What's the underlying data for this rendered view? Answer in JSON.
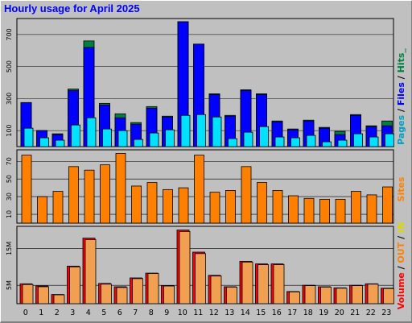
{
  "title": "Hourly usage for April 2025",
  "colors": {
    "pages": "#00e0ff",
    "files": "#0000ff",
    "hits": "#008040",
    "sites": "#ff8000",
    "in": "#d8d800",
    "out": "#ff8000",
    "volume": "#ff0000"
  },
  "legend": {
    "top": [
      {
        "text": "Pages",
        "color": "#00a0c0"
      },
      {
        "text": " / ",
        "color": "#000000"
      },
      {
        "text": "Files",
        "color": "#0000ff"
      },
      {
        "text": " / ",
        "color": "#000000"
      },
      {
        "text": "Hits",
        "color": "#008040"
      },
      {
        "text": "_",
        "color": "#008040"
      }
    ],
    "middle": [
      {
        "text": "Sites",
        "color": "#ff8000"
      }
    ],
    "bottom": [
      {
        "text": "Volume",
        "color": "#ff0000"
      },
      {
        "text": " / ",
        "color": "#000000"
      },
      {
        "text": "OUT",
        "color": "#ff8000"
      },
      {
        "text": " / ",
        "color": "#000000"
      },
      {
        "text": "IN",
        "color": "#d8d800"
      }
    ]
  },
  "chart_data": [
    {
      "type": "bar",
      "panel": "pages-files-hits",
      "categories": [
        "0",
        "1",
        "2",
        "3",
        "4",
        "5",
        "6",
        "7",
        "8",
        "9",
        "10",
        "11",
        "12",
        "13",
        "14",
        "15",
        "16",
        "17",
        "18",
        "19",
        "20",
        "21",
        "22",
        "23"
      ],
      "yticks": [
        100,
        300,
        500,
        700
      ],
      "ylim": [
        0,
        800
      ],
      "series": [
        {
          "name": "Hits",
          "values": [
            275,
            100,
            80,
            360,
            660,
            270,
            205,
            150,
            250,
            190,
            780,
            640,
            330,
            195,
            355,
            330,
            160,
            110,
            165,
            120,
            95,
            200,
            130,
            160
          ]
        },
        {
          "name": "Files",
          "values": [
            275,
            100,
            75,
            350,
            620,
            260,
            180,
            140,
            240,
            185,
            780,
            640,
            325,
            190,
            350,
            325,
            155,
            105,
            160,
            115,
            75,
            195,
            125,
            130
          ]
        },
        {
          "name": "Pages",
          "values": [
            115,
            55,
            40,
            135,
            180,
            110,
            100,
            45,
            85,
            105,
            195,
            200,
            185,
            50,
            90,
            125,
            60,
            55,
            70,
            30,
            40,
            80,
            60,
            80
          ]
        }
      ]
    },
    {
      "type": "bar",
      "panel": "sites",
      "categories": [
        "0",
        "1",
        "2",
        "3",
        "4",
        "5",
        "6",
        "7",
        "8",
        "9",
        "10",
        "11",
        "12",
        "13",
        "14",
        "15",
        "16",
        "17",
        "18",
        "19",
        "20",
        "21",
        "22",
        "23"
      ],
      "yticks": [
        10,
        30,
        50,
        70
      ],
      "ylim": [
        0,
        83
      ],
      "series": [
        {
          "name": "Sites",
          "values": [
            77,
            30,
            36,
            64,
            60,
            66,
            79,
            42,
            46,
            38,
            40,
            77,
            35,
            37,
            64,
            46,
            37,
            31,
            28,
            27,
            27,
            36,
            32,
            41
          ]
        }
      ]
    },
    {
      "type": "bar",
      "panel": "volume",
      "categories": [
        "0",
        "1",
        "2",
        "3",
        "4",
        "5",
        "6",
        "7",
        "8",
        "9",
        "10",
        "11",
        "12",
        "13",
        "14",
        "15",
        "16",
        "17",
        "18",
        "19",
        "20",
        "21",
        "22",
        "23"
      ],
      "yticks": [
        "5M",
        "15M"
      ],
      "ytick_values": [
        5,
        15
      ],
      "ylim": [
        0,
        21
      ],
      "series": [
        {
          "name": "Volume",
          "values": [
            5.4,
            4.8,
            2.5,
            10.2,
            17.8,
            5.5,
            4.6,
            7.0,
            8.3,
            4.9,
            20.0,
            14.0,
            7.7,
            4.6,
            11.5,
            10.8,
            10.8,
            3.3,
            5.0,
            4.6,
            4.3,
            5.0,
            5.4,
            4.2
          ]
        },
        {
          "name": "OUT",
          "values": [
            5.2,
            4.6,
            2.4,
            10.0,
            17.4,
            5.3,
            4.4,
            6.8,
            8.2,
            4.8,
            19.6,
            13.6,
            7.5,
            4.5,
            11.3,
            10.6,
            10.6,
            3.2,
            4.9,
            4.5,
            4.2,
            4.9,
            5.3,
            4.1
          ]
        }
      ]
    }
  ]
}
